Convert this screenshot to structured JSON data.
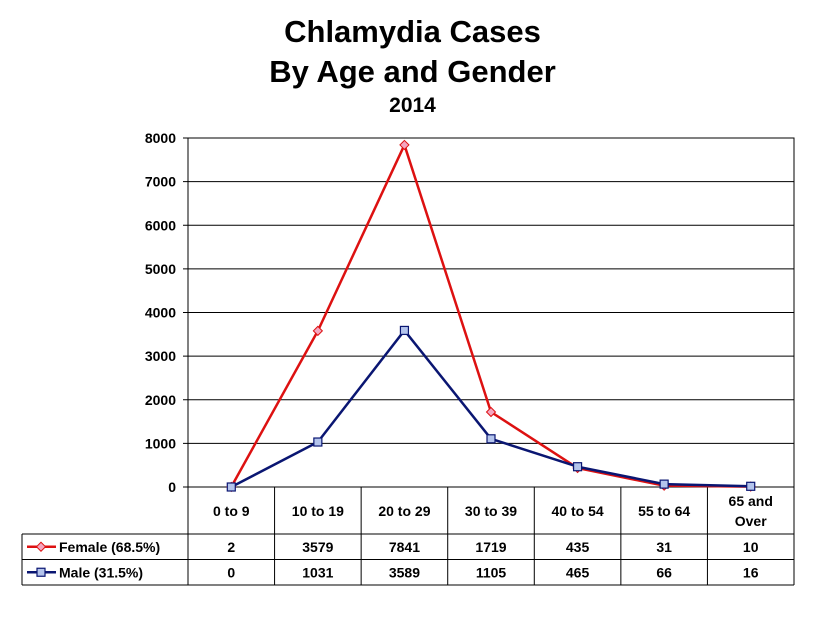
{
  "chart_data": {
    "type": "line",
    "title": "Chlamydia Cases",
    "subtitle": "By Age and Gender",
    "subtitle2": "2014",
    "categories": [
      "0 to 9",
      "10 to 19",
      "20 to 29",
      "30 to 39",
      "40 to 54",
      "55 to 64",
      "65 and Over"
    ],
    "category_lines": [
      [
        "0 to 9"
      ],
      [
        "10 to 19"
      ],
      [
        "20 to 29"
      ],
      [
        "30 to 39"
      ],
      [
        "40 to 54"
      ],
      [
        "55 to 64"
      ],
      [
        "65 and",
        "Over"
      ]
    ],
    "yticks": [
      "0",
      "1000",
      "2000",
      "3000",
      "4000",
      "5000",
      "6000",
      "7000",
      "8000"
    ],
    "ylim": [
      0,
      8000
    ],
    "grid": true,
    "data_table": true,
    "series": [
      {
        "name": "Female (68.5%)",
        "color": "#dd1111",
        "marker": "diamond",
        "marker_fill": "#f4a6c0",
        "values": [
          2,
          3579,
          7841,
          1719,
          435,
          31,
          10
        ]
      },
      {
        "name": "Male (31.5%)",
        "color": "#0a1672",
        "marker": "square",
        "marker_fill": "#b4c4ec",
        "values": [
          0,
          1031,
          3589,
          1105,
          465,
          66,
          16
        ]
      }
    ]
  }
}
